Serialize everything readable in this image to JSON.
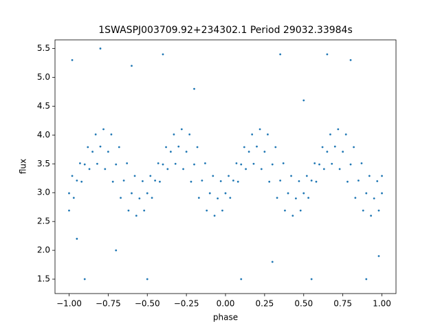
{
  "chart_data": {
    "type": "scatter",
    "title": "1SWASPJ003709.92+234302.1 Period 29032.33984s",
    "x_label": "phase",
    "y_label": "flux",
    "color": "#1f77b4",
    "x": [
      -1,
      -0.95,
      -0.9,
      -0.85,
      -0.8,
      -0.75,
      -0.7,
      -0.65,
      -0.6,
      -0.55,
      -0.5,
      -0.45,
      -0.4,
      -0.35,
      -0.3,
      -0.25,
      -0.2,
      -0.15,
      -0.1,
      -0.05,
      0,
      0.05,
      0.1,
      0.15,
      0.2,
      0.25,
      0.3,
      0.35,
      0.4,
      0.45,
      0.5,
      0.55,
      0.6,
      0.65,
      0.7,
      0.75,
      0.8,
      0.85,
      0.9,
      0.95,
      1,
      -0.98,
      -0.93,
      -0.88,
      -0.83,
      -0.78,
      -0.73,
      -0.68,
      -0.63,
      -0.58,
      -0.53,
      -0.48,
      -0.43,
      -0.38,
      -0.33,
      -0.28,
      -0.23,
      -0.18,
      -0.13,
      -0.08,
      -0.03,
      0.02,
      0.07,
      0.12,
      0.17,
      0.22,
      0.27,
      0.32,
      0.37,
      0.42,
      0.47,
      0.52,
      0.57,
      0.62,
      0.67,
      0.72,
      0.77,
      0.82,
      0.87,
      0.92,
      0.97,
      1,
      -1,
      -0.97,
      -0.92,
      -0.87,
      -0.82,
      -0.77,
      -0.72,
      -0.67,
      -0.62,
      -0.57,
      -0.52,
      -0.47,
      -0.42,
      -0.37,
      -0.32,
      -0.27,
      -0.22,
      -0.17,
      -0.12,
      -0.07,
      -0.02,
      0.03,
      0.08,
      0.13,
      0.18,
      0.23,
      0.28,
      0.33,
      0.38,
      0.43,
      0.48,
      0.53,
      0.58,
      0.63,
      0.68,
      0.73,
      0.78,
      0.83,
      0.88,
      0.93,
      0.98,
      -0.98,
      -0.8,
      -0.6,
      -0.4,
      0.35,
      0.65,
      0.8,
      -0.9,
      -0.5,
      0.1,
      0.55,
      0.9,
      -0.7,
      0.3,
      -0.2,
      0.5,
      -0.95,
      0.98
    ],
    "values": [
      2.99,
      3.21,
      3.49,
      3.71,
      3.8,
      3.71,
      3.49,
      3.21,
      2.99,
      2.9,
      2.99,
      3.21,
      3.49,
      3.71,
      3.8,
      3.71,
      3.49,
      3.21,
      2.99,
      2.9,
      2.99,
      3.21,
      3.49,
      3.71,
      3.8,
      3.71,
      3.49,
      3.21,
      2.99,
      2.9,
      2.99,
      3.21,
      3.49,
      3.71,
      3.8,
      3.71,
      3.49,
      3.21,
      2.99,
      2.9,
      2.99,
      3.29,
      3.51,
      3.79,
      4.01,
      4.1,
      4.01,
      3.79,
      3.51,
      3.29,
      3.2,
      3.29,
      3.51,
      3.79,
      4.01,
      4.1,
      4.01,
      3.79,
      3.51,
      3.29,
      3.2,
      3.29,
      3.51,
      3.79,
      4.01,
      4.1,
      4.01,
      3.79,
      3.51,
      3.29,
      3.2,
      3.29,
      3.51,
      3.79,
      4.01,
      4.1,
      4.01,
      3.79,
      3.51,
      3.29,
      3.2,
      3.29,
      2.69,
      2.91,
      3.19,
      3.41,
      3.5,
      3.41,
      3.19,
      2.91,
      2.69,
      2.6,
      2.69,
      2.91,
      3.19,
      3.41,
      3.5,
      3.41,
      3.19,
      2.91,
      2.69,
      2.6,
      2.69,
      2.91,
      3.19,
      3.41,
      3.5,
      3.41,
      3.19,
      2.91,
      2.69,
      2.6,
      2.69,
      2.91,
      3.19,
      3.41,
      3.5,
      3.41,
      3.19,
      2.91,
      2.69,
      2.6,
      2.69,
      5.3,
      5.5,
      5.2,
      5.4,
      5.4,
      5.4,
      5.3,
      1.5,
      1.5,
      1.5,
      1.5,
      1.5,
      2.0,
      1.8,
      4.8,
      4.6,
      2.2,
      1.9
    ],
    "xlim": [
      -1.09,
      1.09
    ],
    "xticks": [
      {
        "value": -1,
        "label": "−1.00"
      },
      {
        "value": -0.75,
        "label": "−0.75"
      },
      {
        "value": -0.5,
        "label": "−0.50"
      },
      {
        "value": -0.25,
        "label": "−0.25"
      },
      {
        "value": 0,
        "label": "0.00"
      },
      {
        "value": 0.25,
        "label": "0.25"
      },
      {
        "value": 0.5,
        "label": "0.50"
      },
      {
        "value": 0.75,
        "label": "0.75"
      },
      {
        "value": 1,
        "label": "1.00"
      }
    ],
    "ylim": [
      1.25,
      5.65
    ],
    "yticks": [
      1.5,
      {
        "value": 2,
        "label": "2.0"
      },
      2.5,
      {
        "value": 3,
        "label": "3.0"
      },
      3.5,
      {
        "value": 4,
        "label": "4.0"
      },
      4.5,
      {
        "value": 5,
        "label": "5.0"
      },
      5.5
    ]
  }
}
